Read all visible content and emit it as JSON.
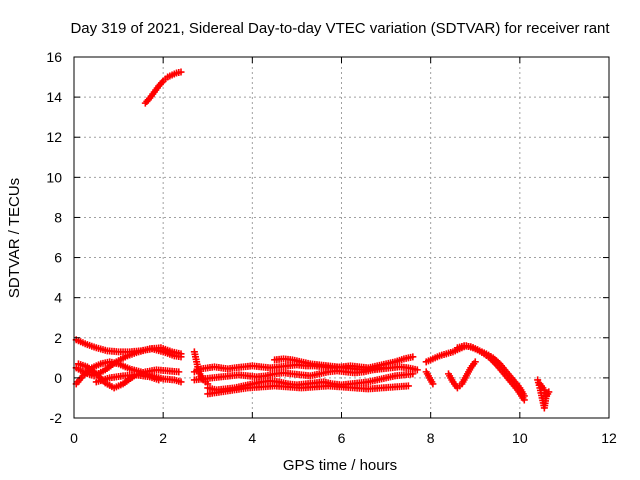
{
  "chart_data": {
    "type": "scatter",
    "title": "Day 319 of 2021, Sidereal Day-to-day VTEC variation (SDTVAR) for receiver rant",
    "xlabel": "GPS time / hours",
    "ylabel": "SDTVAR / TECUs",
    "xlim": [
      0,
      12
    ],
    "ylim": [
      -2,
      16
    ],
    "xticks": [
      "0",
      "2",
      "4",
      "6",
      "8",
      "10",
      "12"
    ],
    "yticks": [
      "-2",
      "0",
      "2",
      "4",
      "6",
      "8",
      "10",
      "12",
      "14",
      "16"
    ],
    "grid": true,
    "marker": "plus",
    "color": "#ff0000",
    "series": [
      {
        "name": "",
        "x": [
          1.6,
          1.7,
          1.8,
          1.9,
          2.0,
          2.1,
          2.2,
          2.3,
          2.4
        ],
        "y": [
          13.7,
          13.95,
          14.25,
          14.55,
          14.8,
          15.0,
          15.1,
          15.2,
          15.25
        ]
      },
      {
        "name": "",
        "x": [
          0.05,
          0.25,
          0.5,
          0.75,
          1.0,
          1.25,
          1.5,
          1.75,
          2.0,
          2.25,
          2.4
        ],
        "y": [
          1.9,
          1.7,
          1.5,
          1.35,
          1.3,
          1.3,
          1.35,
          1.45,
          1.3,
          1.1,
          1.05
        ]
      },
      {
        "name": "",
        "x": [
          0.05,
          0.25,
          0.45,
          0.7,
          0.95,
          1.2,
          1.45,
          1.7,
          1.95,
          2.2,
          2.4
        ],
        "y": [
          0.5,
          0.25,
          0.1,
          0.4,
          0.8,
          1.1,
          1.3,
          1.45,
          1.5,
          1.3,
          1.2
        ]
      },
      {
        "name": "",
        "x": [
          0.05,
          0.2,
          0.4,
          0.6,
          0.8,
          1.0,
          1.25,
          1.5,
          1.75,
          2.0,
          2.25,
          2.4
        ],
        "y": [
          -0.3,
          0.1,
          0.5,
          0.7,
          0.8,
          0.7,
          0.45,
          0.3,
          0.1,
          -0.05,
          -0.1,
          -0.2
        ]
      },
      {
        "name": "",
        "x": [
          0.1,
          0.3,
          0.5,
          0.7,
          0.9,
          1.1,
          1.35,
          1.6,
          1.85,
          2.1,
          2.35
        ],
        "y": [
          0.7,
          0.55,
          0.2,
          -0.25,
          -0.5,
          -0.3,
          0.1,
          0.3,
          0.4,
          0.35,
          0.3
        ]
      },
      {
        "name": "",
        "x": [
          0.5,
          0.8,
          1.1,
          1.4,
          1.7,
          1.9
        ],
        "y": [
          -0.2,
          0.0,
          0.1,
          0.15,
          0.05,
          -0.1
        ]
      },
      {
        "name": "",
        "x": [
          2.7,
          2.75,
          2.8,
          2.9,
          3.0
        ],
        "y": [
          1.3,
          0.8,
          0.3,
          -0.1,
          -0.3
        ]
      },
      {
        "name": "",
        "x": [
          2.7,
          2.85,
          3.0,
          3.15,
          3.3,
          3.45,
          3.6,
          3.8,
          4.0,
          4.2,
          4.4,
          4.6,
          4.8,
          5.0,
          5.2,
          5.4,
          5.6,
          5.8,
          6.0,
          6.2,
          6.4,
          6.6,
          6.8,
          7.0,
          7.2,
          7.4,
          7.6
        ],
        "y": [
          0.3,
          0.45,
          0.5,
          0.55,
          0.5,
          0.45,
          0.5,
          0.55,
          0.6,
          0.55,
          0.5,
          0.55,
          0.6,
          0.65,
          0.6,
          0.6,
          0.55,
          0.5,
          0.55,
          0.6,
          0.55,
          0.5,
          0.6,
          0.7,
          0.8,
          0.95,
          1.05
        ]
      },
      {
        "name": "",
        "x": [
          2.7,
          2.9,
          3.1,
          3.3,
          3.5,
          3.7,
          3.9,
          4.1,
          4.3,
          4.5,
          4.7,
          4.9,
          5.1,
          5.3,
          5.5,
          5.7,
          5.9,
          6.1,
          6.3,
          6.5,
          6.7,
          6.9,
          7.1,
          7.3,
          7.5,
          7.7
        ],
        "y": [
          -0.1,
          -0.05,
          0.0,
          0.05,
          0.1,
          0.15,
          0.1,
          0.05,
          0.1,
          0.2,
          0.25,
          0.2,
          0.15,
          0.1,
          0.2,
          0.3,
          0.35,
          0.3,
          0.25,
          0.3,
          0.4,
          0.45,
          0.5,
          0.55,
          0.5,
          0.4
        ]
      },
      {
        "name": "",
        "x": [
          3.0,
          3.2,
          3.4,
          3.6,
          3.8,
          4.0,
          4.2,
          4.4,
          4.6,
          4.8,
          5.0,
          5.2,
          5.4,
          5.6,
          5.8,
          6.0,
          6.2,
          6.4,
          6.6,
          6.8,
          7.0,
          7.2,
          7.4,
          7.6
        ],
        "y": [
          -0.5,
          -0.6,
          -0.55,
          -0.5,
          -0.4,
          -0.3,
          -0.2,
          -0.15,
          -0.2,
          -0.3,
          -0.35,
          -0.3,
          -0.25,
          -0.2,
          -0.3,
          -0.35,
          -0.3,
          -0.25,
          -0.2,
          -0.1,
          0.0,
          0.1,
          0.15,
          0.2
        ]
      },
      {
        "name": "",
        "x": [
          4.5,
          4.7,
          4.9,
          5.1,
          5.3,
          5.5,
          5.7,
          5.9,
          6.1,
          6.3,
          6.5,
          6.7,
          6.9
        ],
        "y": [
          0.9,
          0.95,
          0.9,
          0.8,
          0.7,
          0.65,
          0.6,
          0.55,
          0.5,
          0.45,
          0.4,
          0.45,
          0.5
        ]
      },
      {
        "name": "",
        "x": [
          3.0,
          3.3,
          3.6,
          3.9,
          4.2,
          4.5,
          4.8,
          5.1,
          5.4,
          5.7,
          6.0,
          6.3,
          6.6,
          6.9,
          7.2,
          7.5
        ],
        "y": [
          -0.8,
          -0.7,
          -0.6,
          -0.5,
          -0.45,
          -0.4,
          -0.45,
          -0.5,
          -0.45,
          -0.4,
          -0.45,
          -0.5,
          -0.55,
          -0.5,
          -0.45,
          -0.4
        ]
      },
      {
        "name": "",
        "x": [
          7.9,
          8.0,
          8.1,
          8.2,
          8.35,
          8.5,
          8.65,
          8.8,
          8.95,
          9.1,
          9.25,
          9.4,
          9.55,
          9.7,
          9.85,
          10.0,
          10.1
        ],
        "y": [
          0.8,
          0.9,
          1.0,
          1.1,
          1.2,
          1.3,
          1.45,
          1.6,
          1.5,
          1.35,
          1.2,
          1.0,
          0.7,
          0.3,
          -0.1,
          -0.5,
          -0.9
        ]
      },
      {
        "name": "",
        "x": [
          8.6,
          8.75,
          8.9,
          9.05,
          9.2,
          9.35,
          9.5,
          9.65,
          9.8,
          9.95,
          10.1
        ],
        "y": [
          1.5,
          1.6,
          1.55,
          1.4,
          1.2,
          0.95,
          0.6,
          0.2,
          -0.2,
          -0.6,
          -1.1
        ]
      },
      {
        "name": "",
        "x": [
          8.4,
          8.5,
          8.6,
          8.7,
          8.8,
          8.9,
          9.0
        ],
        "y": [
          0.2,
          -0.2,
          -0.5,
          -0.3,
          0.1,
          0.5,
          0.8
        ]
      },
      {
        "name": "",
        "x": [
          7.9,
          8.0,
          8.05
        ],
        "y": [
          0.3,
          -0.1,
          -0.3
        ]
      },
      {
        "name": "",
        "x": [
          10.4,
          10.45,
          10.5,
          10.55,
          10.6
        ],
        "y": [
          -0.1,
          -0.5,
          -1.0,
          -1.5,
          -0.8
        ]
      },
      {
        "name": "",
        "x": [
          10.45,
          10.55,
          10.6,
          10.65
        ],
        "y": [
          -0.3,
          -0.6,
          -0.9,
          -0.7
        ]
      }
    ]
  }
}
